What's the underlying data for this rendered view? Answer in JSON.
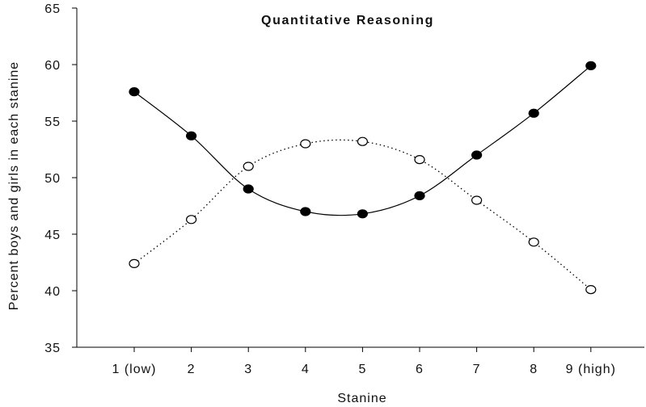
{
  "chart_data": {
    "type": "line",
    "title": "Quantitative Reasoning",
    "xlabel": "Stanine",
    "ylabel": "Percent boys and girls in each stanine",
    "categories": [
      "1 (low)",
      "2",
      "3",
      "4",
      "5",
      "6",
      "7",
      "8",
      "9 (high)"
    ],
    "ylim": [
      35,
      65
    ],
    "yticks": [
      35,
      40,
      45,
      50,
      55,
      60,
      65
    ],
    "grid": false,
    "legend": "none",
    "series": [
      {
        "marker": "filled-circle",
        "line_style": "solid",
        "color": "#000000",
        "values": [
          57.6,
          53.7,
          49.0,
          47.0,
          46.8,
          48.4,
          52.0,
          55.7,
          59.9
        ]
      },
      {
        "marker": "open-circle",
        "line_style": "dotted",
        "color": "#000000",
        "values": [
          42.4,
          46.3,
          51.0,
          53.0,
          53.2,
          51.6,
          48.0,
          44.3,
          40.1
        ]
      }
    ]
  }
}
